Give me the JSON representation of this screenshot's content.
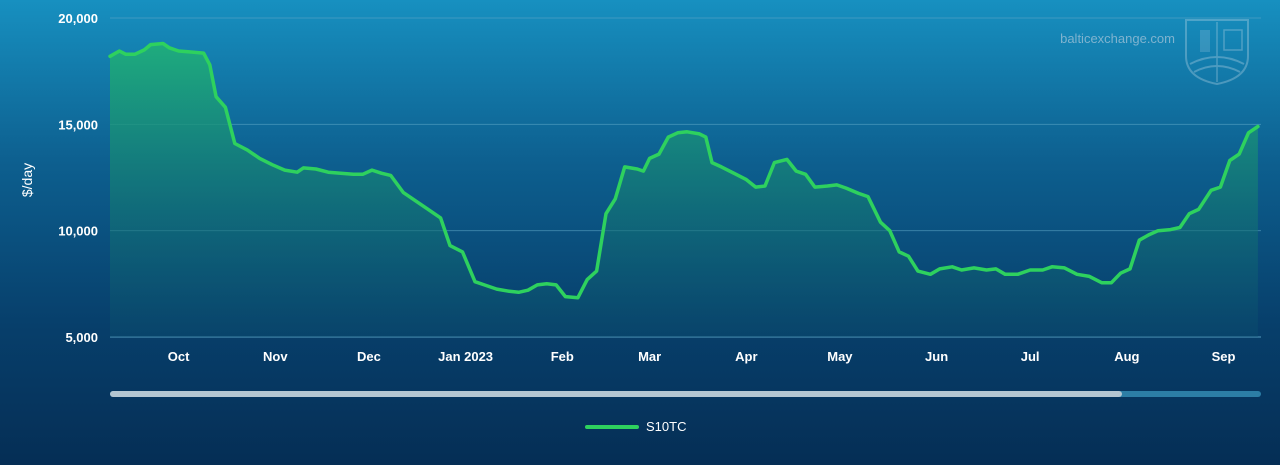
{
  "watermark": {
    "text": "balticexchange.com"
  },
  "colors": {
    "line": "#2ed15e",
    "area_top": "#1fae7a",
    "area_bottom": "#0b4f6e",
    "grid": "#5fa7c9",
    "scroll_track": "#2c7ea6",
    "scroll_thumb": "#b4c6d2"
  },
  "chart_data": {
    "type": "area",
    "ylabel": "$/day",
    "ylim": [
      5000,
      20000
    ],
    "yticks": [
      {
        "value": 5000,
        "label": "5,000"
      },
      {
        "value": 10000,
        "label": "10,000"
      },
      {
        "value": 15000,
        "label": "15,000"
      },
      {
        "value": 20000,
        "label": "20,000"
      }
    ],
    "xlim": [
      "2022-09-09",
      "2023-09-13"
    ],
    "xticks": [
      {
        "date": "2022-10-01",
        "label": "Oct"
      },
      {
        "date": "2022-11-01",
        "label": "Nov"
      },
      {
        "date": "2022-12-01",
        "label": "Dec"
      },
      {
        "date": "2023-01-01",
        "label": "Jan 2023"
      },
      {
        "date": "2023-02-01",
        "label": "Feb"
      },
      {
        "date": "2023-03-01",
        "label": "Mar"
      },
      {
        "date": "2023-04-01",
        "label": "Apr"
      },
      {
        "date": "2023-05-01",
        "label": "May"
      },
      {
        "date": "2023-06-01",
        "label": "Jun"
      },
      {
        "date": "2023-07-01",
        "label": "Jul"
      },
      {
        "date": "2023-08-01",
        "label": "Aug"
      },
      {
        "date": "2023-09-01",
        "label": "Sep"
      }
    ],
    "grid": true,
    "legend": "bottom-center",
    "series": [
      {
        "name": "S10TC",
        "points": [
          [
            "2022-09-09",
            18200
          ],
          [
            "2022-09-12",
            18450
          ],
          [
            "2022-09-14",
            18300
          ],
          [
            "2022-09-17",
            18300
          ],
          [
            "2022-09-20",
            18500
          ],
          [
            "2022-09-22",
            18750
          ],
          [
            "2022-09-26",
            18800
          ],
          [
            "2022-09-28",
            18600
          ],
          [
            "2022-10-01",
            18450
          ],
          [
            "2022-10-05",
            18400
          ],
          [
            "2022-10-09",
            18350
          ],
          [
            "2022-10-11",
            17800
          ],
          [
            "2022-10-13",
            16300
          ],
          [
            "2022-10-16",
            15800
          ],
          [
            "2022-10-19",
            14100
          ],
          [
            "2022-10-23",
            13800
          ],
          [
            "2022-10-27",
            13400
          ],
          [
            "2022-10-31",
            13100
          ],
          [
            "2022-11-04",
            12850
          ],
          [
            "2022-11-08",
            12750
          ],
          [
            "2022-11-10",
            12950
          ],
          [
            "2022-11-14",
            12900
          ],
          [
            "2022-11-18",
            12750
          ],
          [
            "2022-11-22",
            12700
          ],
          [
            "2022-11-26",
            12650
          ],
          [
            "2022-11-29",
            12650
          ],
          [
            "2022-12-02",
            12850
          ],
          [
            "2022-12-05",
            12700
          ],
          [
            "2022-12-08",
            12600
          ],
          [
            "2022-12-12",
            11800
          ],
          [
            "2022-12-16",
            11400
          ],
          [
            "2022-12-20",
            11000
          ],
          [
            "2022-12-24",
            10600
          ],
          [
            "2022-12-27",
            9300
          ],
          [
            "2022-12-31",
            9000
          ],
          [
            "2023-01-04",
            7600
          ],
          [
            "2023-01-07",
            7450
          ],
          [
            "2023-01-11",
            7250
          ],
          [
            "2023-01-15",
            7150
          ],
          [
            "2023-01-18",
            7100
          ],
          [
            "2023-01-21",
            7200
          ],
          [
            "2023-01-24",
            7450
          ],
          [
            "2023-01-27",
            7500
          ],
          [
            "2023-01-30",
            7450
          ],
          [
            "2023-02-02",
            6900
          ],
          [
            "2023-02-06",
            6850
          ],
          [
            "2023-02-09",
            7700
          ],
          [
            "2023-02-12",
            8100
          ],
          [
            "2023-02-15",
            10800
          ],
          [
            "2023-02-18",
            11500
          ],
          [
            "2023-02-21",
            13000
          ],
          [
            "2023-02-25",
            12900
          ],
          [
            "2023-02-27",
            12800
          ],
          [
            "2023-03-01",
            13400
          ],
          [
            "2023-03-04",
            13600
          ],
          [
            "2023-03-07",
            14400
          ],
          [
            "2023-03-10",
            14600
          ],
          [
            "2023-03-13",
            14650
          ],
          [
            "2023-03-17",
            14550
          ],
          [
            "2023-03-19",
            14400
          ],
          [
            "2023-03-21",
            13200
          ],
          [
            "2023-03-24",
            13000
          ],
          [
            "2023-03-28",
            12700
          ],
          [
            "2023-04-01",
            12400
          ],
          [
            "2023-04-04",
            12050
          ],
          [
            "2023-04-07",
            12100
          ],
          [
            "2023-04-10",
            13200
          ],
          [
            "2023-04-14",
            13350
          ],
          [
            "2023-04-17",
            12800
          ],
          [
            "2023-04-20",
            12650
          ],
          [
            "2023-04-23",
            12050
          ],
          [
            "2023-04-27",
            12100
          ],
          [
            "2023-04-30",
            12150
          ],
          [
            "2023-05-03",
            12000
          ],
          [
            "2023-05-07",
            11750
          ],
          [
            "2023-05-10",
            11600
          ],
          [
            "2023-05-14",
            10400
          ],
          [
            "2023-05-17",
            10000
          ],
          [
            "2023-05-20",
            9000
          ],
          [
            "2023-05-23",
            8800
          ],
          [
            "2023-05-26",
            8100
          ],
          [
            "2023-05-30",
            7950
          ],
          [
            "2023-06-02",
            8200
          ],
          [
            "2023-06-06",
            8300
          ],
          [
            "2023-06-09",
            8150
          ],
          [
            "2023-06-13",
            8250
          ],
          [
            "2023-06-17",
            8150
          ],
          [
            "2023-06-20",
            8200
          ],
          [
            "2023-06-23",
            7950
          ],
          [
            "2023-06-27",
            7950
          ],
          [
            "2023-07-01",
            8150
          ],
          [
            "2023-07-05",
            8150
          ],
          [
            "2023-07-08",
            8300
          ],
          [
            "2023-07-12",
            8250
          ],
          [
            "2023-07-16",
            7950
          ],
          [
            "2023-07-20",
            7850
          ],
          [
            "2023-07-24",
            7550
          ],
          [
            "2023-07-27",
            7550
          ],
          [
            "2023-07-30",
            8000
          ],
          [
            "2023-08-02",
            8200
          ],
          [
            "2023-08-05",
            9550
          ],
          [
            "2023-08-08",
            9800
          ],
          [
            "2023-08-11",
            10000
          ],
          [
            "2023-08-15",
            10050
          ],
          [
            "2023-08-18",
            10150
          ],
          [
            "2023-08-21",
            10800
          ],
          [
            "2023-08-24",
            11000
          ],
          [
            "2023-08-28",
            11900
          ],
          [
            "2023-08-31",
            12050
          ],
          [
            "2023-09-03",
            13300
          ],
          [
            "2023-09-06",
            13600
          ],
          [
            "2023-09-09",
            14600
          ],
          [
            "2023-09-12",
            14900
          ]
        ]
      }
    ]
  }
}
